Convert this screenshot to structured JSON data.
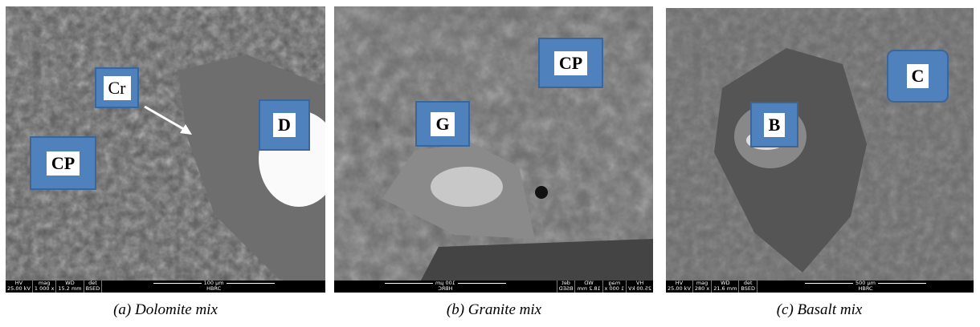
{
  "panels": [
    {
      "caption": "(a) Dolomite mix",
      "labels": [
        "Cr",
        "D",
        "CP"
      ],
      "info": {
        "headers": [
          "HV",
          "mag",
          "WD",
          "det"
        ],
        "values": [
          "25.00 kV",
          "1 000 x",
          "15.2 mm",
          "BSED"
        ],
        "scale": "100 µm",
        "lab": "HBRC"
      }
    },
    {
      "caption": "(b) Granite mix",
      "labels": [
        "CP",
        "G"
      ],
      "info": {
        "headers": [
          "HV",
          "mag",
          "WD",
          "det"
        ],
        "values": [
          "25.00 kV",
          "1 000 x",
          "18.2 mm",
          "BSED"
        ],
        "scale": "100 µm",
        "lab": "HBRC"
      }
    },
    {
      "caption": "(c) Basalt mix",
      "labels": [
        "C",
        "B"
      ],
      "info": {
        "headers": [
          "HV",
          "mag",
          "WD",
          "det"
        ],
        "values": [
          "25.00 kV",
          "280 x",
          "21.6 mm",
          "BSED"
        ],
        "scale": "500 µm",
        "lab": "HBRC"
      }
    }
  ]
}
